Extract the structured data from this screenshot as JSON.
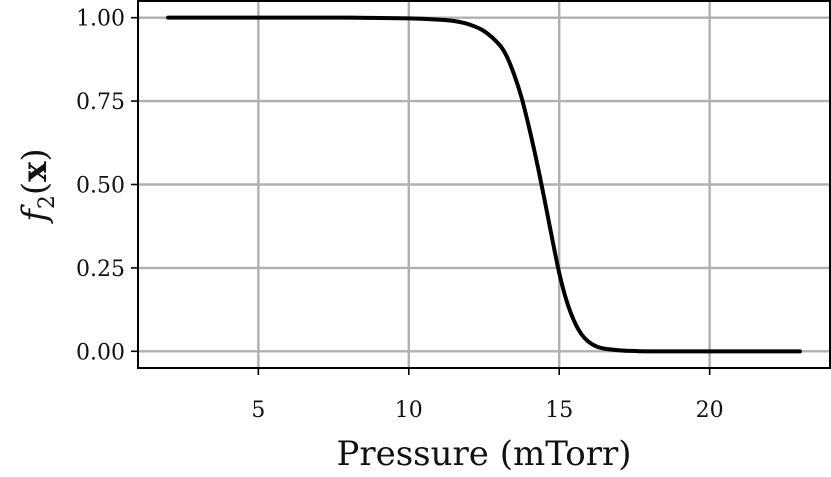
{
  "chart_data": {
    "type": "line",
    "xlabel": "Pressure (mTorr)",
    "ylabel": {
      "base": "f",
      "subscript": "2",
      "open": "(",
      "arg": "x",
      "close": ")"
    },
    "xlim": [
      1.0,
      24.0
    ],
    "ylim": [
      -0.05,
      1.05
    ],
    "xticks": [
      5,
      10,
      15,
      20
    ],
    "xtick_labels": [
      "5",
      "10",
      "15",
      "20"
    ],
    "yticks": [
      0.0,
      0.25,
      0.5,
      0.75,
      1.0
    ],
    "ytick_labels": [
      "0.00",
      "0.25",
      "0.50",
      "0.75",
      "1.00"
    ],
    "grid": true,
    "series": [
      {
        "color": "#000000",
        "x": [
          2.0,
          4.0,
          6.0,
          8.0,
          10.0,
          11.0,
          11.5,
          12.0,
          12.5,
          13.0,
          13.25,
          13.5,
          13.75,
          14.0,
          14.25,
          14.5,
          14.75,
          15.0,
          15.25,
          15.5,
          15.75,
          16.0,
          16.25,
          16.5,
          17.0,
          17.5,
          18.0,
          20.0,
          22.0,
          23.0
        ],
        "y": [
          1.0,
          1.0,
          1.0,
          1.0,
          0.998,
          0.994,
          0.99,
          0.98,
          0.96,
          0.92,
          0.885,
          0.83,
          0.76,
          0.67,
          0.57,
          0.46,
          0.345,
          0.235,
          0.15,
          0.09,
          0.05,
          0.027,
          0.014,
          0.008,
          0.003,
          0.001,
          0.0,
          0.0,
          0.0,
          0.0
        ]
      }
    ]
  }
}
